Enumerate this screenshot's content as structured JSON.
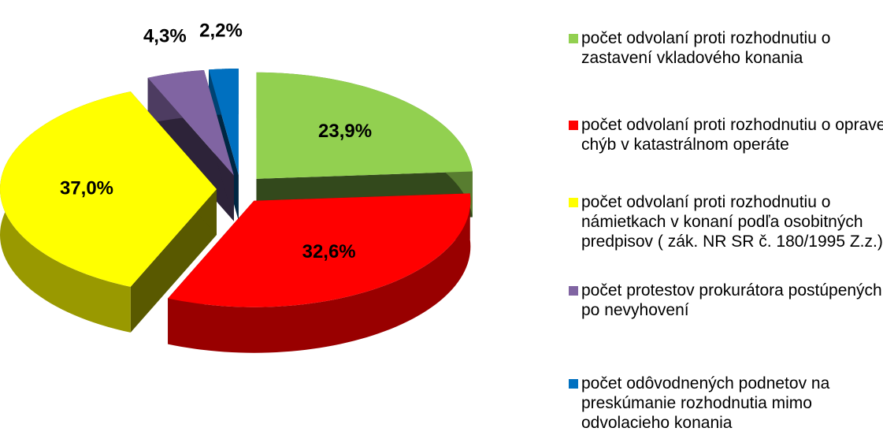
{
  "chart_data": {
    "type": "pie",
    "categories": [
      "počet odvolaní proti rozhodnutiu o zastavení vkladového konania",
      "počet odvolaní proti rozhodnutiu o oprave chýb v katastrálnom operáte",
      "počet odvolaní proti rozhodnutiu o námietkach v konaní podľa osobitných predpisov ( zák. NR SR č. 180/1995 Z.z.)",
      "počet protestov prokurátora postúpených po nevyhovení",
      "počet odôvodnených podnetov na preskúmanie rozhodnutia mimo odvolacieho konania"
    ],
    "values": [
      23.9,
      32.6,
      37.0,
      4.3,
      2.2
    ],
    "value_labels": [
      "23,9%",
      "32,6%",
      "37,0%",
      "4,3%",
      "2,2%"
    ],
    "colors": [
      "#92d050",
      "#ff0000",
      "#ffff00",
      "#8064a2",
      "#0070c0"
    ],
    "legend": "right"
  }
}
